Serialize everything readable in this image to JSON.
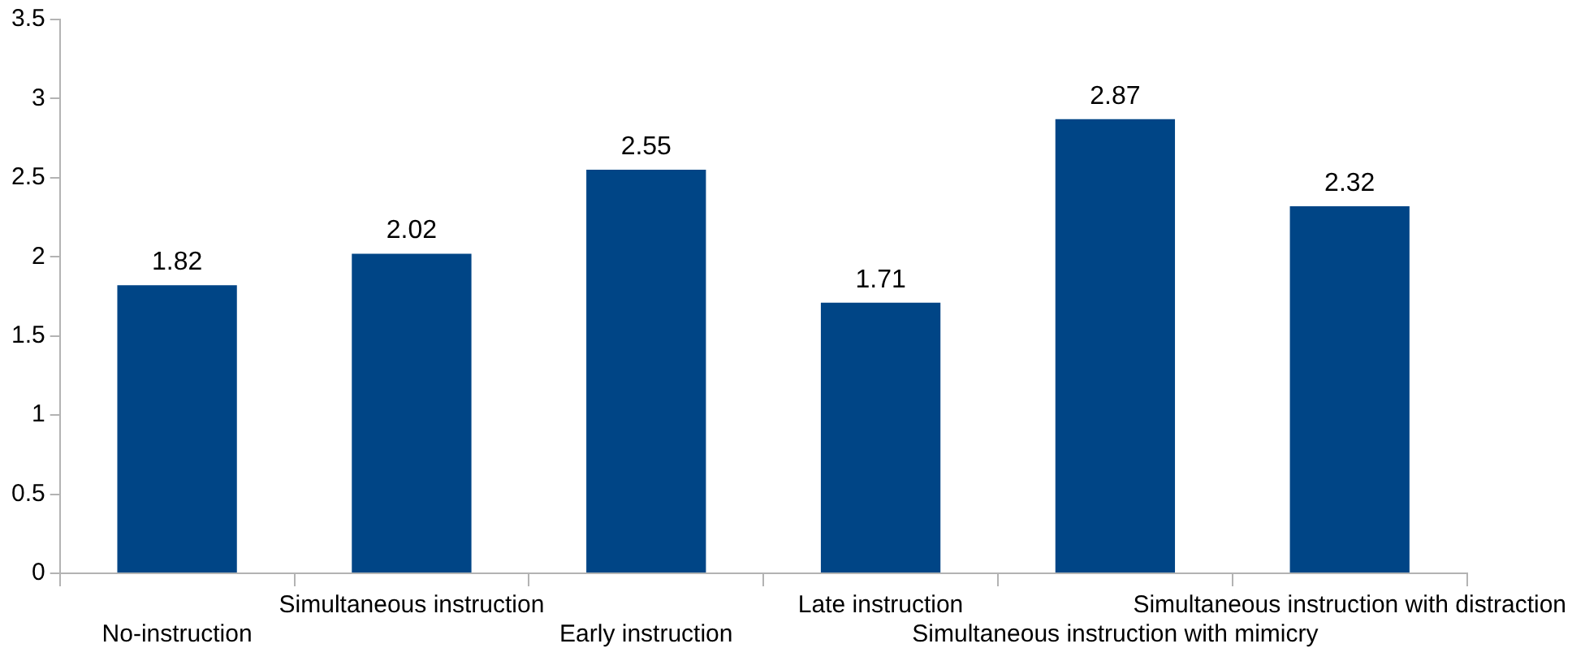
{
  "chart_data": {
    "type": "bar",
    "categories": [
      "No-instruction",
      "Simultaneous instruction",
      "Early instruction",
      "Late instruction",
      "Simultaneous instruction with mimicry",
      "Simultaneous instruction with distraction"
    ],
    "values": [
      1.82,
      2.02,
      2.55,
      1.71,
      2.87,
      2.32
    ],
    "color": "#004586",
    "ylim": [
      0,
      3.5
    ],
    "yticks": [
      0,
      0.5,
      1,
      1.5,
      2,
      2.5,
      3,
      3.5
    ],
    "grid": false,
    "data_labels": true
  }
}
